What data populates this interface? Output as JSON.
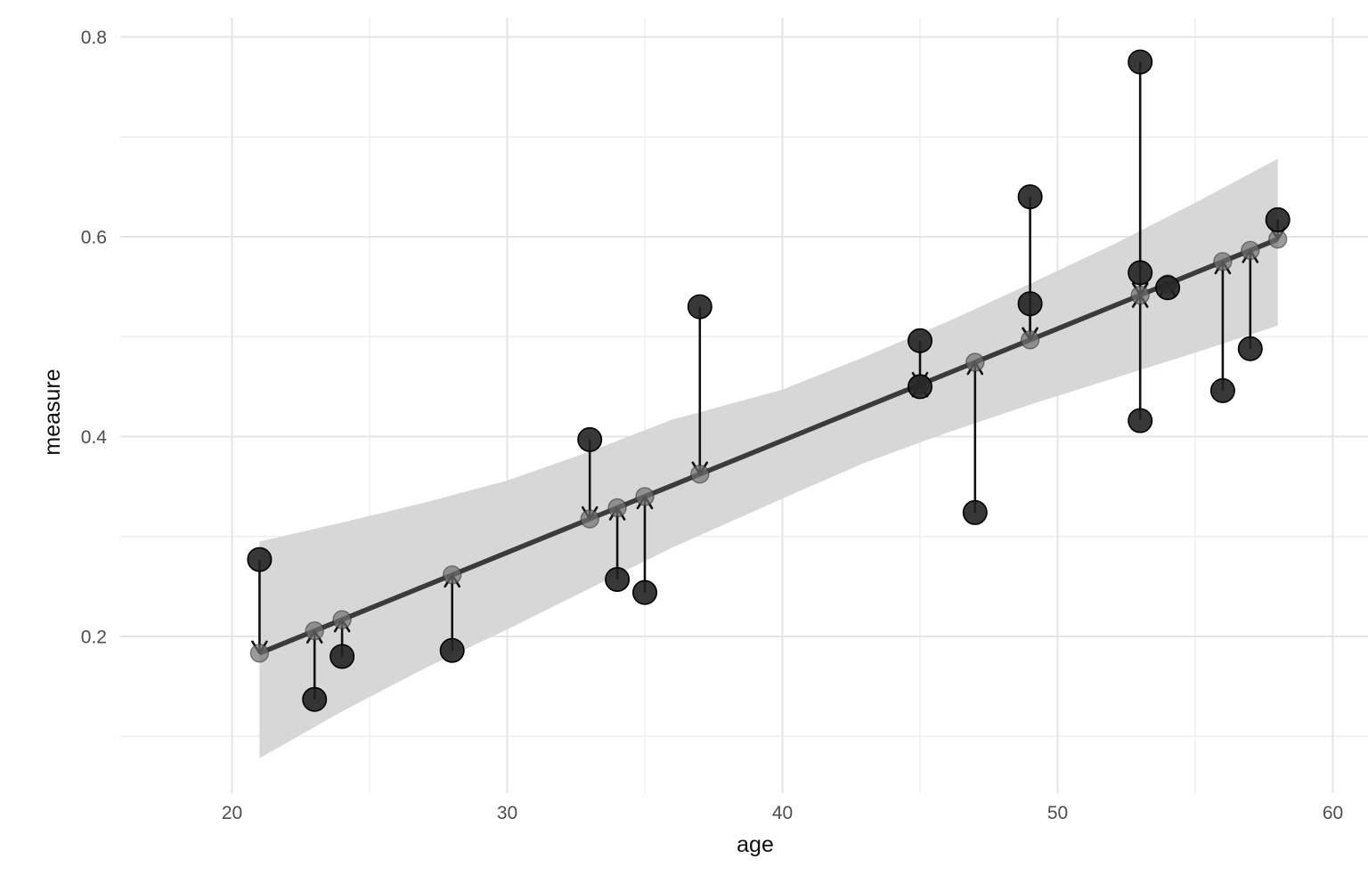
{
  "chart_data": {
    "type": "scatter",
    "title": "",
    "xlabel": "age",
    "ylabel": "measure",
    "x_ticks": [
      {
        "value": 20,
        "label": "20"
      },
      {
        "value": 30,
        "label": "30"
      },
      {
        "value": 40,
        "label": "40"
      },
      {
        "value": 50,
        "label": "50"
      },
      {
        "value": 60,
        "label": "60"
      }
    ],
    "y_ticks": [
      {
        "value": 0.2,
        "label": "0.2"
      },
      {
        "value": 0.4,
        "label": "0.4"
      },
      {
        "value": 0.6,
        "label": "0.6"
      },
      {
        "value": 0.8,
        "label": "0.8"
      }
    ],
    "x_minor_ticks": [
      25,
      35,
      45,
      55
    ],
    "y_minor_ticks": [
      0.1,
      0.3,
      0.5,
      0.7
    ],
    "xlim": [
      15.9,
      62.1
    ],
    "ylim": [
      0.043,
      0.819
    ],
    "grid": true,
    "legend": false,
    "points": [
      {
        "age": 21,
        "measure": 0.277
      },
      {
        "age": 23,
        "measure": 0.137
      },
      {
        "age": 24,
        "measure": 0.18
      },
      {
        "age": 28,
        "measure": 0.186
      },
      {
        "age": 33,
        "measure": 0.397
      },
      {
        "age": 34,
        "measure": 0.257
      },
      {
        "age": 35,
        "measure": 0.244
      },
      {
        "age": 37,
        "measure": 0.53
      },
      {
        "age": 45,
        "measure": 0.496
      },
      {
        "age": 45,
        "measure": 0.45
      },
      {
        "age": 47,
        "measure": 0.324
      },
      {
        "age": 49,
        "measure": 0.64
      },
      {
        "age": 49,
        "measure": 0.533
      },
      {
        "age": 53,
        "measure": 0.775
      },
      {
        "age": 53,
        "measure": 0.564
      },
      {
        "age": 53,
        "measure": 0.416
      },
      {
        "age": 54,
        "measure": 0.549
      },
      {
        "age": 56,
        "measure": 0.446
      },
      {
        "age": 57,
        "measure": 0.488
      },
      {
        "age": 58,
        "measure": 0.617
      }
    ],
    "regression": {
      "intercept": -0.052,
      "slope": 0.0112,
      "x_start": 21,
      "x_end": 58,
      "fitted_point_ages": [
        21,
        23,
        24,
        28,
        33,
        34,
        35,
        37,
        45,
        47,
        49,
        53,
        54,
        56,
        57,
        58
      ]
    },
    "confidence_ribbon": [
      {
        "age": 21,
        "lower": 0.078,
        "upper": 0.295
      },
      {
        "age": 24,
        "lower": 0.125,
        "upper": 0.314
      },
      {
        "age": 27,
        "lower": 0.168,
        "upper": 0.334
      },
      {
        "age": 30,
        "lower": 0.207,
        "upper": 0.356
      },
      {
        "age": 33,
        "lower": 0.248,
        "upper": 0.385
      },
      {
        "age": 36,
        "lower": 0.289,
        "upper": 0.417
      },
      {
        "age": 40,
        "lower": 0.338,
        "upper": 0.447
      },
      {
        "age": 43,
        "lower": 0.374,
        "upper": 0.48
      },
      {
        "age": 46,
        "lower": 0.404,
        "upper": 0.515
      },
      {
        "age": 49,
        "lower": 0.432,
        "upper": 0.553
      },
      {
        "age": 52,
        "lower": 0.458,
        "upper": 0.592
      },
      {
        "age": 55,
        "lower": 0.484,
        "upper": 0.634
      },
      {
        "age": 58,
        "lower": 0.511,
        "upper": 0.678
      }
    ],
    "colors": {
      "observed_point": "#222222",
      "fitted_point": "#707070",
      "regression_line": "#3b3b3b",
      "residual_segment": "#111111",
      "ribbon": "#d5d5d5",
      "grid_major": "#e4e4e4",
      "grid_minor": "#eeeeee",
      "tick_text": "#4d4d4d",
      "axis_title_text": "#0d0d0d",
      "background": "#ffffff"
    }
  }
}
